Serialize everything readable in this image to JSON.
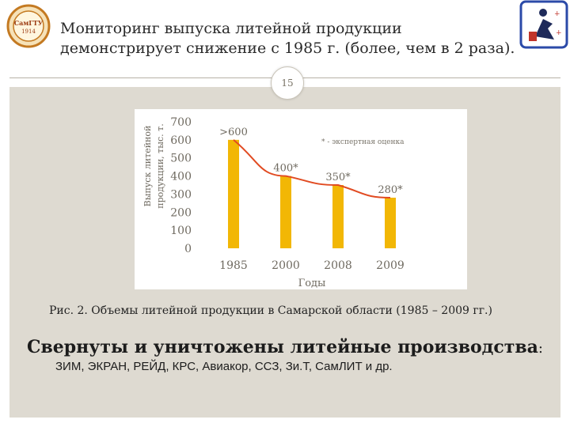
{
  "slide": {
    "title_line1": "Мониторинг выпуска литейной продукции",
    "title_line2": "демонстрирует снижение с 1985 г. (более, чем в 2 раза).",
    "page_number": "15",
    "logo_left_text": "СамГТУ",
    "logo_left_year": "1914",
    "caption": "Рис. 2. Объемы литейной продукции в Самарской области (1985 – 2009 гг.)",
    "heading": "Свернуты и уничтожены литейные производства",
    "heading_colon": ":",
    "plants_list": "ЗИМ, ЭКРАН, РЕЙД, КРС, Авиакор, ССЗ, Зи.Т, СамЛИТ и др."
  },
  "colors": {
    "bar": "#f2b705",
    "trend_line": "#e14b22",
    "panel": "#dedad1",
    "text": "#222222"
  },
  "chart_data": {
    "type": "bar",
    "title": "",
    "xlabel": "Годы",
    "ylabel_line1": "Выпуск литейной",
    "ylabel_line2": "продукции, тыс. т.",
    "ylim": [
      0,
      700
    ],
    "yticks": [
      0,
      100,
      200,
      300,
      400,
      500,
      600,
      700
    ],
    "categories": [
      "1985",
      "2000",
      "2008",
      "2009"
    ],
    "values": [
      600,
      400,
      350,
      280
    ],
    "data_labels": [
      ">600",
      "400*",
      "350*",
      "280*"
    ],
    "trend_line": true,
    "note": "* - экспертная оценка",
    "grid": false
  }
}
